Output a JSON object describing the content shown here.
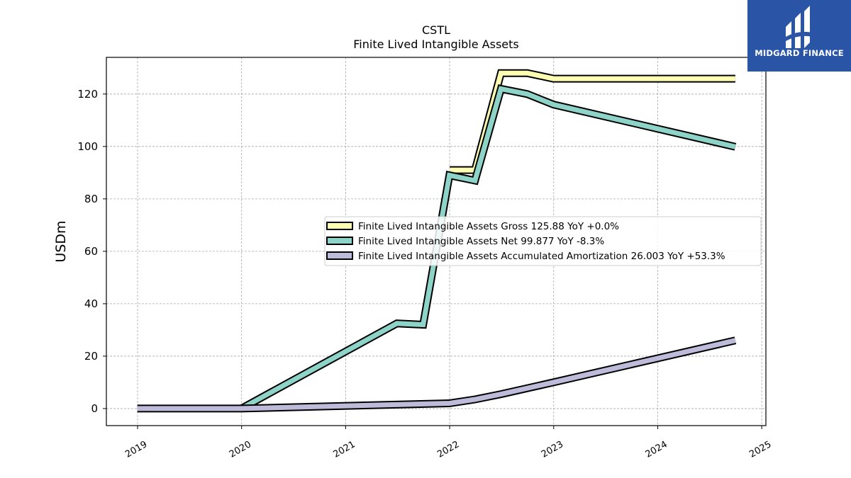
{
  "logo": {
    "name": "MIDGARD FINANCE",
    "background": "#2a55a6"
  },
  "chart_data": {
    "type": "line",
    "title": "CSTL",
    "subtitle": "Finite Lived Intangible Assets",
    "xlabel": "",
    "ylabel": "USDm",
    "xlim": [
      2018.7,
      2025.04
    ],
    "ylim": [
      -6.5,
      134
    ],
    "x_ticks": [
      "2019",
      "2020",
      "2021",
      "2022",
      "2023",
      "2024",
      "2025"
    ],
    "y_ticks": [
      0,
      20,
      40,
      60,
      80,
      100,
      120
    ],
    "grid": true,
    "legend_position": "center-right",
    "series": [
      {
        "name": "Finite Lived Intangible Assets Gross",
        "legend": "Finite Lived Intangible Assets Gross  125.88 YoY +0.0%",
        "color": "#ffffb3",
        "x": [
          "2022-01-01",
          "2022-03-31",
          "2022-06-30",
          "2022-09-30",
          "2022-12-31",
          "2024-09-30"
        ],
        "y": [
          91.0,
          91.0,
          128.0,
          128.0,
          125.88,
          125.88
        ]
      },
      {
        "name": "Finite Lived Intangible Assets Net",
        "legend": "Finite Lived Intangible Assets Net  99.877 YoY -8.3%",
        "color": "#8dd3c7",
        "x": [
          "2019-12-31",
          "2021-06-30",
          "2021-09-30",
          "2021-12-31",
          "2022-03-31",
          "2022-06-30",
          "2022-09-30",
          "2022-12-31",
          "2024-09-30"
        ],
        "y": [
          0.0,
          32.5,
          32.0,
          89.0,
          87.0,
          122.0,
          120.0,
          116.0,
          99.877
        ]
      },
      {
        "name": "Finite Lived Intangible Assets Accumulated Amortization",
        "legend": "Finite Lived Intangible Assets Accumulated Amortization  26.003 YoY +53.3%",
        "color": "#bebada",
        "x": [
          "2018-12-31",
          "2019-12-31",
          "2021-12-31",
          "2022-03-31",
          "2022-06-30",
          "2022-12-31",
          "2024-09-30"
        ],
        "y": [
          0.0,
          0.0,
          2.0,
          3.5,
          5.5,
          10.0,
          26.003
        ]
      }
    ]
  }
}
